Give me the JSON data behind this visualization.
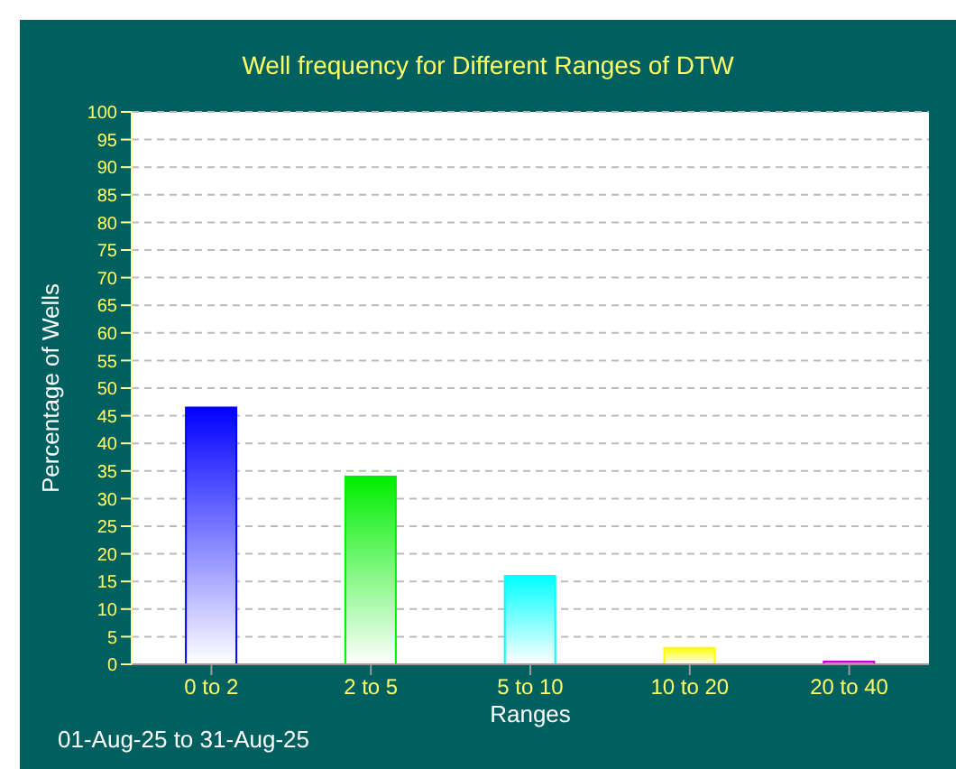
{
  "chart_data": {
    "type": "bar",
    "title": "Well frequency for Different Ranges of DTW",
    "xlabel": "Ranges",
    "ylabel": "Percentage of Wells",
    "categories": [
      "0 to 2",
      "2 to 5",
      "5 to 10",
      "10 to 20",
      "20 to 40"
    ],
    "values": [
      46.5,
      34,
      16,
      3,
      0.5
    ],
    "colors": [
      "#0000ff",
      "#00ee00",
      "#00ffff",
      "#ffff00",
      "#c000c0"
    ],
    "ylim": [
      0,
      100
    ],
    "yticks": [
      0,
      5,
      10,
      15,
      20,
      25,
      30,
      35,
      40,
      45,
      50,
      55,
      60,
      65,
      70,
      75,
      80,
      85,
      90,
      95,
      100
    ],
    "grid": "y",
    "annotations": [
      "01-Aug-25 to 31-Aug-25"
    ]
  }
}
